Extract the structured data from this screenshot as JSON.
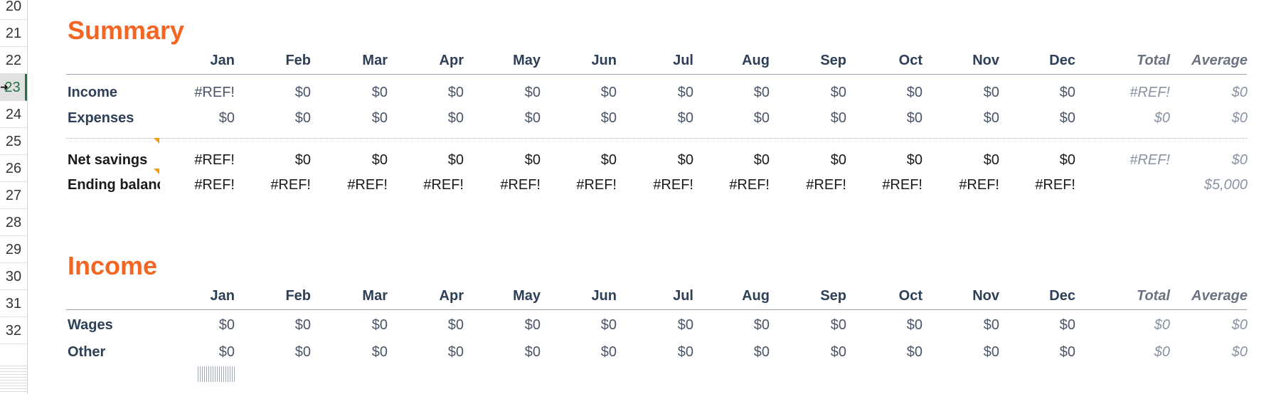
{
  "row_headers": [
    "20",
    "21",
    "22",
    "23",
    "24",
    "25",
    "26",
    "27",
    "28",
    "29",
    "30",
    "31",
    "32"
  ],
  "selected_row": "23",
  "colors": {
    "accent": "#f26522",
    "header_text": "#2e4057",
    "selected_row_bar": "#217346",
    "comment_marker": "#f59e0b"
  },
  "months": [
    "Jan",
    "Feb",
    "Mar",
    "Apr",
    "May",
    "Jun",
    "Jul",
    "Aug",
    "Sep",
    "Oct",
    "Nov",
    "Dec"
  ],
  "total_label": "Total",
  "average_label": "Average",
  "summary": {
    "title": "Summary",
    "rows": [
      {
        "label": "Income",
        "values": [
          "#REF!",
          "$0",
          "$0",
          "$0",
          "$0",
          "$0",
          "$0",
          "$0",
          "$0",
          "$0",
          "$0",
          "$0"
        ],
        "total": "#REF!",
        "average": "$0"
      },
      {
        "label": "Expenses",
        "values": [
          "$0",
          "$0",
          "$0",
          "$0",
          "$0",
          "$0",
          "$0",
          "$0",
          "$0",
          "$0",
          "$0",
          "$0"
        ],
        "total": "$0",
        "average": "$0"
      },
      {
        "label": "Net savings",
        "values": [
          "#REF!",
          "$0",
          "$0",
          "$0",
          "$0",
          "$0",
          "$0",
          "$0",
          "$0",
          "$0",
          "$0",
          "$0"
        ],
        "total": "#REF!",
        "average": "$0"
      },
      {
        "label": "Ending balance",
        "values": [
          "#REF!",
          "#REF!",
          "#REF!",
          "#REF!",
          "#REF!",
          "#REF!",
          "#REF!",
          "#REF!",
          "#REF!",
          "#REF!",
          "#REF!",
          "#REF!"
        ],
        "total": "",
        "average": "$5,000"
      }
    ]
  },
  "income": {
    "title": "Income",
    "rows": [
      {
        "label": "Wages",
        "values": [
          "$0",
          "$0",
          "$0",
          "$0",
          "$0",
          "$0",
          "$0",
          "$0",
          "$0",
          "$0",
          "$0",
          "$0"
        ],
        "total": "$0",
        "average": "$0"
      },
      {
        "label": "Other",
        "values": [
          "$0",
          "$0",
          "$0",
          "$0",
          "$0",
          "$0",
          "$0",
          "$0",
          "$0",
          "$0",
          "$0",
          "$0"
        ],
        "total": "$0",
        "average": "$0"
      }
    ]
  }
}
